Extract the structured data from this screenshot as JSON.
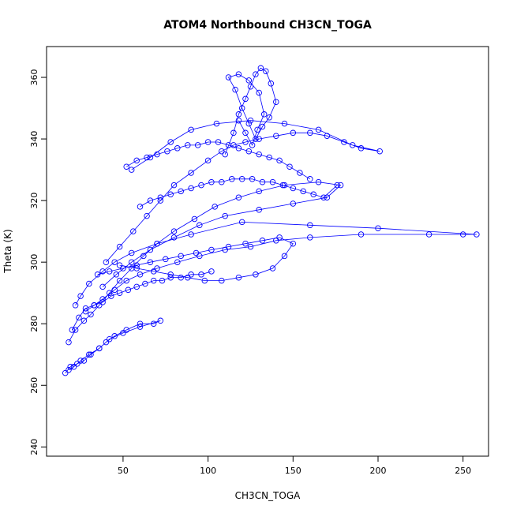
{
  "chart_data": {
    "type": "scatter",
    "title": "ATOM4 Northbound CH3CN_TOGA",
    "xlabel": "CH3CN_TOGA",
    "ylabel": "Theta (K)",
    "xlim": [
      5,
      265
    ],
    "ylim": [
      237,
      370
    ],
    "x_ticks": [
      50,
      100,
      150,
      200,
      250
    ],
    "y_ticks": [
      240,
      260,
      280,
      300,
      320,
      340,
      360
    ],
    "grid": false,
    "legend": "none",
    "series_color": "#0000ff",
    "series": [
      {
        "x": [
          20,
          24,
          28,
          33,
          38,
          45,
          52,
          60,
          70,
          82,
          95,
          110,
          125,
          140,
          160,
          190,
          230,
          250,
          258,
          200,
          160,
          120,
          90,
          70,
          55,
          45,
          38,
          30,
          25,
          22
        ],
        "y": [
          278,
          282,
          285,
          286,
          288,
          291,
          294,
          296,
          298,
          300,
          302,
          304,
          305,
          307,
          308,
          309,
          309,
          309,
          309,
          311,
          312,
          313,
          309,
          306,
          303,
          300,
          297,
          293,
          289,
          286
        ]
      },
      {
        "x": [
          18,
          22,
          27,
          31,
          36,
          42,
          48,
          55,
          62,
          70,
          80,
          92,
          104,
          118,
          130,
          145,
          165,
          178,
          170,
          150,
          130,
          110,
          95,
          80,
          66,
          55,
          46,
          38
        ],
        "y": [
          274,
          278,
          281,
          283,
          286,
          290,
          294,
          298,
          302,
          306,
          310,
          314,
          318,
          321,
          323,
          325,
          326,
          325,
          321,
          319,
          317,
          315,
          312,
          308,
          304,
          300,
          296,
          292
        ]
      },
      {
        "x": [
          40,
          48,
          56,
          64,
          72,
          80,
          90,
          100,
          108,
          115,
          122,
          130,
          140,
          150,
          160,
          170,
          180,
          190,
          201,
          185,
          165,
          145,
          125,
          105,
          90,
          78,
          66,
          55
        ],
        "y": [
          300,
          305,
          310,
          315,
          320,
          325,
          329,
          333,
          336,
          338,
          339,
          340,
          341,
          342,
          342,
          341,
          339,
          337,
          336,
          338,
          343,
          345,
          346,
          345,
          343,
          339,
          334,
          330
        ]
      },
      {
        "x": [
          110,
          115,
          118,
          122,
          125,
          128,
          131,
          134,
          137,
          140,
          136,
          132,
          128,
          124,
          120,
          116,
          112,
          118,
          124,
          130,
          133,
          129,
          126,
          122,
          118
        ],
        "y": [
          335,
          342,
          348,
          353,
          357,
          361,
          363,
          362,
          358,
          352,
          347,
          344,
          340,
          345,
          350,
          356,
          360,
          361,
          359,
          355,
          348,
          343,
          338,
          342,
          346
        ]
      },
      {
        "x": [
          16,
          19,
          23,
          27,
          31,
          36,
          40,
          45,
          52,
          60,
          68,
          72,
          60,
          50,
          42,
          36,
          30,
          25,
          21,
          18
        ],
        "y": [
          264,
          266,
          267,
          268,
          270,
          272,
          274,
          276,
          278,
          280,
          280,
          281,
          279,
          277,
          275,
          272,
          270,
          268,
          266,
          265
        ]
      },
      {
        "x": [
          60,
          66,
          72,
          78,
          84,
          90,
          96,
          102,
          108,
          114,
          120,
          126,
          132,
          138,
          144,
          150,
          156,
          162,
          168,
          176
        ],
        "y": [
          318,
          320,
          321,
          322,
          323,
          324,
          325,
          326,
          326,
          327,
          327,
          327,
          326,
          326,
          325,
          324,
          323,
          322,
          321,
          325
        ]
      },
      {
        "x": [
          35,
          42,
          50,
          58,
          66,
          75,
          84,
          93,
          102,
          112,
          122,
          132,
          142,
          150,
          145,
          138,
          128,
          118,
          108,
          98,
          88,
          78,
          68,
          58,
          48
        ],
        "y": [
          296,
          297,
          298,
          299,
          300,
          301,
          302,
          303,
          304,
          305,
          306,
          307,
          308,
          306,
          302,
          298,
          296,
          295,
          294,
          294,
          295,
          296,
          297,
          298,
          299
        ]
      },
      {
        "x": [
          52,
          58,
          64,
          70,
          76,
          82,
          88,
          94,
          100,
          106,
          112,
          118,
          124,
          130,
          136,
          142,
          148,
          154,
          160
        ],
        "y": [
          331,
          333,
          334,
          335,
          336,
          337,
          338,
          338,
          339,
          339,
          338,
          337,
          336,
          335,
          334,
          333,
          331,
          329,
          327
        ]
      },
      {
        "x": [
          28,
          33,
          38,
          43,
          48,
          53,
          58,
          63,
          68,
          73,
          78,
          84,
          90,
          96,
          102
        ],
        "y": [
          284,
          286,
          287,
          289,
          290,
          291,
          292,
          293,
          294,
          294,
          295,
          295,
          296,
          296,
          297
        ]
      }
    ]
  }
}
